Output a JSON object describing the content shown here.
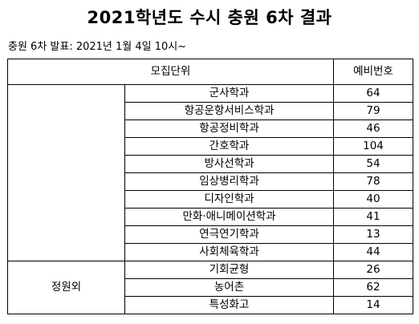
{
  "title": "2021학년도 수시 충원 6차 결과",
  "subtitle": "충원 6차 발표: 2021년 1월 4일 10시~",
  "table": {
    "header": {
      "unit": "모집단위",
      "waitlist": "예비번호"
    },
    "group1": {
      "label": "",
      "rows": [
        {
          "dept": "군사학과",
          "num": "64"
        },
        {
          "dept": "항공운항서비스학과",
          "num": "79"
        },
        {
          "dept": "항공정비학과",
          "num": "46"
        },
        {
          "dept": "간호학과",
          "num": "104"
        },
        {
          "dept": "방사선학과",
          "num": "54"
        },
        {
          "dept": "임상병리학과",
          "num": "78"
        },
        {
          "dept": "디자인학과",
          "num": "40"
        },
        {
          "dept": "만화·애니메이션학과",
          "num": "41"
        },
        {
          "dept": "연극연기학과",
          "num": "13"
        },
        {
          "dept": "사회체육학과",
          "num": "44"
        }
      ]
    },
    "group2": {
      "label": "정원외",
      "rows": [
        {
          "dept": "기회균형",
          "num": "26"
        },
        {
          "dept": "농어촌",
          "num": "62"
        },
        {
          "dept": "특성화고",
          "num": "14"
        }
      ]
    }
  }
}
